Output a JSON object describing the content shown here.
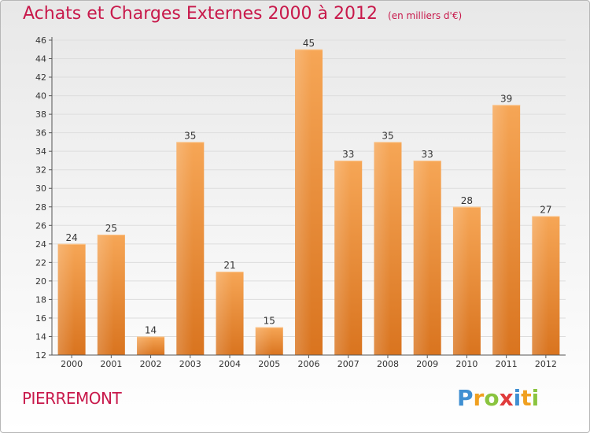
{
  "title": "Achats et Charges Externes 2000 à 2012",
  "unit": "(en milliers d'€)",
  "commune": "PIERREMONT",
  "logo": {
    "letters": [
      "P",
      "r",
      "o",
      "x",
      "i",
      "t",
      "i"
    ],
    "colors": [
      "#3f8fd2",
      "#f0a020",
      "#8ac43f",
      "#e03c3c",
      "#3f8fd2",
      "#f0a020",
      "#8ac43f"
    ]
  },
  "colors": {
    "accent": "#c8194b",
    "bar_light": "#f6a656",
    "bar_dark": "#d9741f",
    "axis": "#555555",
    "grid": "#dddddd"
  },
  "chart_data": {
    "type": "bar",
    "title": "Achats et Charges Externes 2000 à 2012",
    "subtitle": "(en milliers d'€)",
    "categories": [
      "2000",
      "2001",
      "2002",
      "2003",
      "2004",
      "2005",
      "2006",
      "2007",
      "2008",
      "2009",
      "2010",
      "2011",
      "2012"
    ],
    "values": [
      24,
      25,
      14,
      35,
      21,
      15,
      45,
      33,
      35,
      33,
      28,
      39,
      27
    ],
    "ylim": [
      12,
      46
    ],
    "yticks": [
      12,
      14,
      16,
      18,
      20,
      22,
      24,
      26,
      28,
      30,
      32,
      34,
      36,
      38,
      40,
      42,
      44,
      46
    ],
    "xlabel": "",
    "ylabel": "",
    "grid": true
  }
}
